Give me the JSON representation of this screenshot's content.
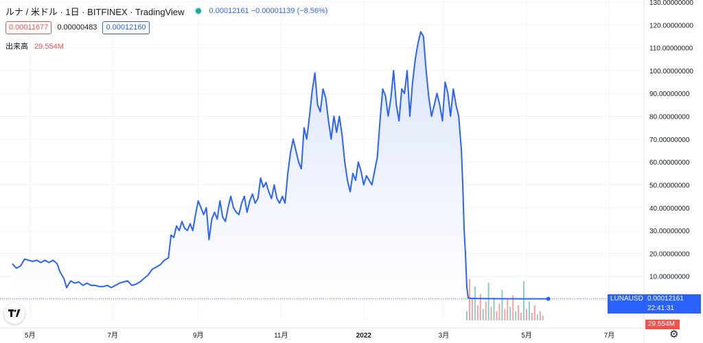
{
  "header": {
    "symbol": "ルナ / 米ドル · 1日 · BITFINEX · TradingView",
    "quote": "0.00012161  −0.00001139 (−8.56%)",
    "bid": "0.00011677",
    "spread": "0.00000483",
    "ask": "0.00012160",
    "volume_label": "出来高",
    "volume_value": "29.554M"
  },
  "price_tag": {
    "ticker": "LUNAUSD",
    "price": "0.00012161",
    "countdown": "22:41:31"
  },
  "volume_tag": "29.554M",
  "icons": {
    "logo": "tradingview-logo-icon",
    "settings": "gear-icon",
    "status": "market-status-dot-icon"
  },
  "colors": {
    "line": "#2962ff",
    "fill_top": "#dbe4fb",
    "fill_bottom": "#ffffff",
    "vol_up": "#26a69a",
    "vol_down": "#ef5350",
    "grid": "#f0f3fa"
  },
  "chart_data": {
    "type": "area",
    "ylim": [
      0,
      130
    ],
    "y_ticks": [
      "10.00000000",
      "20.00000000",
      "30.00000000",
      "40.00000000",
      "50.00000000",
      "60.00000000",
      "70.00000000",
      "80.00000000",
      "90.00000000",
      "100.00000000",
      "110.00000000",
      "120.00000000",
      "130.00000000"
    ],
    "y_tick_values": [
      10,
      20,
      30,
      40,
      50,
      60,
      70,
      80,
      90,
      100,
      110,
      120,
      130
    ],
    "x_range_days": [
      0,
      420
    ],
    "x_ticks": [
      {
        "label": "5月",
        "day": 13
      },
      {
        "label": "7月",
        "day": 74
      },
      {
        "label": "9月",
        "day": 137
      },
      {
        "label": "11月",
        "day": 198
      },
      {
        "label": "2022",
        "day": 259
      },
      {
        "label": "3月",
        "day": 318
      },
      {
        "label": "5月",
        "day": 379
      },
      {
        "label": "7月",
        "day": 440
      }
    ],
    "series": [
      {
        "points": [
          [
            0,
            15.5
          ],
          [
            3,
            13.5
          ],
          [
            6,
            14.5
          ],
          [
            9,
            17.5
          ],
          [
            12,
            17
          ],
          [
            15,
            16.5
          ],
          [
            18,
            17
          ],
          [
            21,
            16
          ],
          [
            24,
            17
          ],
          [
            27,
            16
          ],
          [
            30,
            17
          ],
          [
            33,
            15.5
          ],
          [
            35,
            12
          ],
          [
            38,
            9
          ],
          [
            40,
            5
          ],
          [
            43,
            8
          ],
          [
            46,
            7
          ],
          [
            49,
            7.5
          ],
          [
            52,
            6
          ],
          [
            55,
            7
          ],
          [
            58,
            6
          ],
          [
            61,
            6
          ],
          [
            64,
            5.5
          ],
          [
            67,
            5.5
          ],
          [
            70,
            6
          ],
          [
            73,
            5
          ],
          [
            76,
            6
          ],
          [
            79,
            7
          ],
          [
            82,
            7.5
          ],
          [
            85,
            8
          ],
          [
            88,
            6
          ],
          [
            91,
            6.5
          ],
          [
            94,
            7.5
          ],
          [
            97,
            9
          ],
          [
            100,
            10.5
          ],
          [
            103,
            13
          ],
          [
            106,
            14
          ],
          [
            109,
            15
          ],
          [
            112,
            17
          ],
          [
            115,
            18
          ],
          [
            117,
            28
          ],
          [
            119,
            27
          ],
          [
            121,
            32
          ],
          [
            123,
            30
          ],
          [
            125,
            34
          ],
          [
            127,
            31
          ],
          [
            129,
            30
          ],
          [
            131,
            33
          ],
          [
            133,
            30
          ],
          [
            135,
            37
          ],
          [
            137,
            43
          ],
          [
            139,
            40
          ],
          [
            141,
            37
          ],
          [
            143,
            40
          ],
          [
            145,
            26
          ],
          [
            147,
            35
          ],
          [
            149,
            38
          ],
          [
            151,
            35
          ],
          [
            153,
            43
          ],
          [
            155,
            36
          ],
          [
            157,
            34
          ],
          [
            159,
            40
          ],
          [
            161,
            45
          ],
          [
            163,
            40
          ],
          [
            165,
            38
          ],
          [
            167,
            37
          ],
          [
            169,
            42
          ],
          [
            171,
            45
          ],
          [
            173,
            38
          ],
          [
            175,
            43
          ],
          [
            177,
            46
          ],
          [
            179,
            42
          ],
          [
            181,
            44
          ],
          [
            183,
            53
          ],
          [
            185,
            49
          ],
          [
            187,
            51
          ],
          [
            189,
            47
          ],
          [
            191,
            44
          ],
          [
            193,
            50
          ],
          [
            195,
            44
          ],
          [
            197,
            42
          ],
          [
            199,
            45
          ],
          [
            201,
            42
          ],
          [
            203,
            55
          ],
          [
            205,
            64
          ],
          [
            207,
            70
          ],
          [
            209,
            65
          ],
          [
            211,
            60
          ],
          [
            213,
            57
          ],
          [
            215,
            75
          ],
          [
            217,
            70
          ],
          [
            219,
            80
          ],
          [
            221,
            91
          ],
          [
            223,
            99
          ],
          [
            225,
            85
          ],
          [
            227,
            82
          ],
          [
            229,
            92
          ],
          [
            231,
            88
          ],
          [
            233,
            78
          ],
          [
            235,
            70
          ],
          [
            237,
            80
          ],
          [
            239,
            73
          ],
          [
            241,
            80
          ],
          [
            243,
            72
          ],
          [
            245,
            60
          ],
          [
            247,
            52
          ],
          [
            249,
            47
          ],
          [
            251,
            55
          ],
          [
            253,
            52
          ],
          [
            255,
            60
          ],
          [
            257,
            56
          ],
          [
            259,
            50
          ],
          [
            261,
            54
          ],
          [
            263,
            52
          ],
          [
            265,
            50
          ],
          [
            267,
            56
          ],
          [
            269,
            62
          ],
          [
            271,
            78
          ],
          [
            273,
            92
          ],
          [
            275,
            89
          ],
          [
            277,
            80
          ],
          [
            279,
            88
          ],
          [
            281,
            100
          ],
          [
            283,
            85
          ],
          [
            285,
            78
          ],
          [
            287,
            92
          ],
          [
            289,
            90
          ],
          [
            291,
            100
          ],
          [
            293,
            80
          ],
          [
            295,
            95
          ],
          [
            297,
            105
          ],
          [
            299,
            112
          ],
          [
            301,
            117
          ],
          [
            303,
            115
          ],
          [
            305,
            100
          ],
          [
            307,
            88
          ],
          [
            309,
            80
          ],
          [
            311,
            85
          ],
          [
            313,
            90
          ],
          [
            315,
            85
          ],
          [
            317,
            78
          ],
          [
            319,
            95
          ],
          [
            321,
            90
          ],
          [
            323,
            80
          ],
          [
            325,
            92
          ],
          [
            327,
            85
          ],
          [
            329,
            80
          ],
          [
            331,
            65
          ],
          [
            332,
            50
          ],
          [
            333,
            30
          ],
          [
            334,
            20
          ],
          [
            335,
            5
          ],
          [
            336,
            0.5
          ],
          [
            338,
            0.3
          ],
          [
            345,
            0.2
          ],
          [
            360,
            0.15
          ],
          [
            380,
            0.13
          ],
          [
            395,
            0.12
          ]
        ],
        "last_point": [
          395,
          0.12
        ]
      }
    ],
    "volume": [
      {
        "day": 335,
        "h": 0.12,
        "c": "up"
      },
      {
        "day": 337,
        "h": 0.55,
        "c": "down"
      },
      {
        "day": 339,
        "h": 0.3,
        "c": "down"
      },
      {
        "day": 341,
        "h": 0.45,
        "c": "up"
      },
      {
        "day": 343,
        "h": 0.2,
        "c": "down"
      },
      {
        "day": 345,
        "h": 0.35,
        "c": "down"
      },
      {
        "day": 347,
        "h": 0.15,
        "c": "up"
      },
      {
        "day": 349,
        "h": 0.25,
        "c": "down"
      },
      {
        "day": 351,
        "h": 0.5,
        "c": "up"
      },
      {
        "day": 353,
        "h": 0.18,
        "c": "down"
      },
      {
        "day": 355,
        "h": 0.3,
        "c": "up"
      },
      {
        "day": 357,
        "h": 0.12,
        "c": "down"
      },
      {
        "day": 359,
        "h": 0.22,
        "c": "down"
      },
      {
        "day": 361,
        "h": 0.4,
        "c": "up"
      },
      {
        "day": 363,
        "h": 0.15,
        "c": "down"
      },
      {
        "day": 365,
        "h": 0.28,
        "c": "down"
      },
      {
        "day": 367,
        "h": 0.18,
        "c": "up"
      },
      {
        "day": 369,
        "h": 0.33,
        "c": "down"
      },
      {
        "day": 371,
        "h": 0.12,
        "c": "up"
      },
      {
        "day": 373,
        "h": 0.2,
        "c": "down"
      },
      {
        "day": 375,
        "h": 0.1,
        "c": "down"
      },
      {
        "day": 377,
        "h": 0.52,
        "c": "up"
      },
      {
        "day": 379,
        "h": 0.15,
        "c": "down"
      },
      {
        "day": 381,
        "h": 0.25,
        "c": "up"
      },
      {
        "day": 383,
        "h": 0.1,
        "c": "down"
      },
      {
        "day": 385,
        "h": 0.2,
        "c": "down"
      },
      {
        "day": 387,
        "h": 0.08,
        "c": "up"
      },
      {
        "day": 389,
        "h": 0.12,
        "c": "down"
      },
      {
        "day": 391,
        "h": 0.06,
        "c": "down"
      }
    ]
  }
}
